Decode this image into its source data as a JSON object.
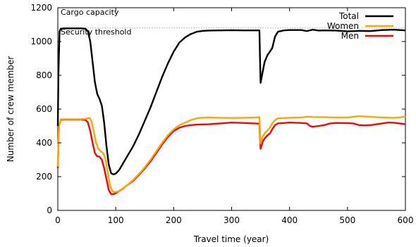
{
  "chart_data": {
    "type": "line",
    "title": "",
    "xlabel": "Travel time (year)",
    "ylabel": "Number of crew member",
    "xlim": [
      0,
      600
    ],
    "ylim": [
      0,
      1200
    ],
    "xticks": [
      0,
      100,
      200,
      300,
      400,
      500,
      600
    ],
    "yticks": [
      0,
      200,
      400,
      600,
      800,
      1000,
      1200
    ],
    "grid": false,
    "legend_position": "top-right",
    "annotations": [
      {
        "text": "Cargo capacity",
        "y": 1200
      },
      {
        "text": "Security threshold",
        "y": 1080
      }
    ],
    "reference_lines": [
      {
        "name": "Security threshold",
        "y": 1080,
        "color": "#aaaaaa",
        "style": "dotted"
      }
    ],
    "series": [
      {
        "name": "Total",
        "color": "#000000",
        "points": [
          [
            0,
            500
          ],
          [
            1,
            800
          ],
          [
            3,
            1060
          ],
          [
            5,
            1075
          ],
          [
            10,
            1078
          ],
          [
            20,
            1078
          ],
          [
            30,
            1078
          ],
          [
            40,
            1078
          ],
          [
            48,
            1075
          ],
          [
            52,
            1060
          ],
          [
            56,
            1000
          ],
          [
            60,
            880
          ],
          [
            64,
            760
          ],
          [
            68,
            690
          ],
          [
            72,
            660
          ],
          [
            76,
            620
          ],
          [
            80,
            520
          ],
          [
            84,
            380
          ],
          [
            88,
            270
          ],
          [
            92,
            220
          ],
          [
            96,
            213
          ],
          [
            100,
            218
          ],
          [
            106,
            240
          ],
          [
            112,
            275
          ],
          [
            118,
            310
          ],
          [
            124,
            345
          ],
          [
            130,
            380
          ],
          [
            140,
            450
          ],
          [
            150,
            530
          ],
          [
            160,
            610
          ],
          [
            170,
            700
          ],
          [
            180,
            790
          ],
          [
            190,
            870
          ],
          [
            200,
            940
          ],
          [
            210,
            995
          ],
          [
            220,
            1025
          ],
          [
            230,
            1045
          ],
          [
            240,
            1058
          ],
          [
            250,
            1063
          ],
          [
            260,
            1065
          ],
          [
            280,
            1066
          ],
          [
            300,
            1067
          ],
          [
            320,
            1066
          ],
          [
            340,
            1066
          ],
          [
            348,
            1066
          ],
          [
            349,
            900
          ],
          [
            350,
            755
          ],
          [
            353,
            810
          ],
          [
            357,
            880
          ],
          [
            362,
            920
          ],
          [
            366,
            940
          ],
          [
            370,
            960
          ],
          [
            375,
            1030
          ],
          [
            380,
            1058
          ],
          [
            390,
            1066
          ],
          [
            400,
            1068
          ],
          [
            420,
            1068
          ],
          [
            430,
            1062
          ],
          [
            440,
            1070
          ],
          [
            450,
            1065
          ],
          [
            460,
            1066
          ],
          [
            480,
            1065
          ],
          [
            500,
            1060
          ],
          [
            520,
            1063
          ],
          [
            540,
            1062
          ],
          [
            560,
            1068
          ],
          [
            580,
            1070
          ],
          [
            590,
            1068
          ],
          [
            600,
            1066
          ]
        ]
      },
      {
        "name": "Women",
        "color": "#ffa500",
        "points": [
          [
            0,
            260
          ],
          [
            2,
            500
          ],
          [
            5,
            540
          ],
          [
            10,
            540
          ],
          [
            20,
            540
          ],
          [
            30,
            540
          ],
          [
            40,
            540
          ],
          [
            48,
            542
          ],
          [
            55,
            548
          ],
          [
            58,
            530
          ],
          [
            62,
            470
          ],
          [
            66,
            400
          ],
          [
            70,
            365
          ],
          [
            74,
            350
          ],
          [
            78,
            340
          ],
          [
            82,
            310
          ],
          [
            86,
            230
          ],
          [
            90,
            150
          ],
          [
            94,
            115
          ],
          [
            98,
            108
          ],
          [
            104,
            112
          ],
          [
            110,
            125
          ],
          [
            120,
            150
          ],
          [
            130,
            180
          ],
          [
            140,
            215
          ],
          [
            150,
            255
          ],
          [
            160,
            300
          ],
          [
            170,
            350
          ],
          [
            180,
            400
          ],
          [
            190,
            445
          ],
          [
            200,
            480
          ],
          [
            210,
            505
          ],
          [
            220,
            520
          ],
          [
            230,
            535
          ],
          [
            240,
            545
          ],
          [
            250,
            549
          ],
          [
            260,
            550
          ],
          [
            280,
            548
          ],
          [
            300,
            547
          ],
          [
            320,
            548
          ],
          [
            340,
            550
          ],
          [
            348,
            552
          ],
          [
            349,
            460
          ],
          [
            350,
            395
          ],
          [
            354,
            440
          ],
          [
            358,
            460
          ],
          [
            362,
            475
          ],
          [
            366,
            490
          ],
          [
            370,
            515
          ],
          [
            375,
            535
          ],
          [
            380,
            545
          ],
          [
            400,
            548
          ],
          [
            420,
            550
          ],
          [
            430,
            555
          ],
          [
            440,
            553
          ],
          [
            460,
            552
          ],
          [
            480,
            550
          ],
          [
            500,
            550
          ],
          [
            520,
            558
          ],
          [
            540,
            554
          ],
          [
            560,
            550
          ],
          [
            580,
            548
          ],
          [
            590,
            550
          ],
          [
            600,
            556
          ]
        ]
      },
      {
        "name": "Men",
        "color": "#ff0000",
        "points": [
          [
            0,
            250
          ],
          [
            2,
            500
          ],
          [
            5,
            536
          ],
          [
            10,
            538
          ],
          [
            20,
            538
          ],
          [
            30,
            538
          ],
          [
            40,
            538
          ],
          [
            48,
            535
          ],
          [
            52,
            520
          ],
          [
            56,
            470
          ],
          [
            60,
            400
          ],
          [
            64,
            340
          ],
          [
            68,
            320
          ],
          [
            72,
            318
          ],
          [
            76,
            300
          ],
          [
            80,
            250
          ],
          [
            84,
            185
          ],
          [
            88,
            120
          ],
          [
            92,
            97
          ],
          [
            96,
            96
          ],
          [
            100,
            102
          ],
          [
            106,
            115
          ],
          [
            112,
            128
          ],
          [
            120,
            150
          ],
          [
            130,
            175
          ],
          [
            140,
            210
          ],
          [
            150,
            248
          ],
          [
            160,
            290
          ],
          [
            170,
            340
          ],
          [
            180,
            390
          ],
          [
            190,
            435
          ],
          [
            200,
            470
          ],
          [
            210,
            490
          ],
          [
            220,
            500
          ],
          [
            230,
            505
          ],
          [
            240,
            508
          ],
          [
            260,
            510
          ],
          [
            280,
            515
          ],
          [
            300,
            520
          ],
          [
            320,
            518
          ],
          [
            340,
            515
          ],
          [
            348,
            514
          ],
          [
            349,
            430
          ],
          [
            350,
            365
          ],
          [
            354,
            410
          ],
          [
            358,
            430
          ],
          [
            362,
            445
          ],
          [
            366,
            455
          ],
          [
            370,
            480
          ],
          [
            375,
            505
          ],
          [
            380,
            515
          ],
          [
            400,
            520
          ],
          [
            420,
            518
          ],
          [
            430,
            515
          ],
          [
            435,
            500
          ],
          [
            440,
            495
          ],
          [
            450,
            500
          ],
          [
            460,
            505
          ],
          [
            470,
            515
          ],
          [
            480,
            518
          ],
          [
            500,
            517
          ],
          [
            510,
            515
          ],
          [
            520,
            505
          ],
          [
            530,
            503
          ],
          [
            540,
            505
          ],
          [
            560,
            515
          ],
          [
            570,
            520
          ],
          [
            580,
            519
          ],
          [
            590,
            515
          ],
          [
            600,
            510
          ]
        ]
      }
    ]
  }
}
